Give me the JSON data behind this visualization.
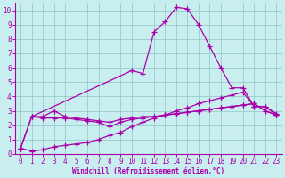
{
  "xlabel": "Windchill (Refroidissement éolien,°C)",
  "background_color": "#c8eef0",
  "line_color": "#aa00aa",
  "grid_color": "#99cccc",
  "xlim": [
    -0.5,
    23.5
  ],
  "ylim": [
    0,
    10.5
  ],
  "xticks": [
    0,
    1,
    2,
    3,
    4,
    5,
    6,
    7,
    8,
    9,
    10,
    11,
    12,
    13,
    14,
    15,
    16,
    17,
    18,
    19,
    20,
    21,
    22,
    23
  ],
  "yticks": [
    0,
    1,
    2,
    3,
    4,
    5,
    6,
    7,
    8,
    9,
    10
  ],
  "line1_x": [
    0,
    1,
    2,
    3,
    4,
    5,
    6,
    7,
    8,
    9,
    10,
    11,
    12,
    13,
    14,
    15,
    16,
    17,
    18,
    19,
    20,
    21,
    22,
    23
  ],
  "line1_y": [
    0.4,
    2.6,
    2.6,
    3.0,
    2.6,
    2.5,
    2.4,
    2.3,
    2.2,
    2.4,
    2.5,
    2.6,
    2.6,
    2.7,
    2.8,
    2.9,
    3.0,
    3.1,
    3.2,
    3.3,
    3.4,
    3.5,
    3.0,
    2.7
  ],
  "line2_x": [
    0,
    1,
    2,
    3,
    4,
    5,
    6,
    7,
    8,
    9,
    10,
    11,
    12,
    13,
    14,
    15,
    16,
    17,
    18,
    19,
    20,
    21,
    22,
    23
  ],
  "line2_y": [
    0.4,
    0.2,
    0.3,
    0.5,
    0.6,
    0.7,
    0.8,
    1.0,
    1.3,
    1.5,
    1.9,
    2.2,
    2.5,
    2.7,
    3.0,
    3.2,
    3.5,
    3.7,
    3.9,
    4.1,
    4.3,
    3.3,
    3.3,
    2.8
  ],
  "line3_x": [
    1,
    10,
    11,
    12,
    13,
    14,
    15,
    16,
    17,
    18,
    19,
    20,
    21,
    22,
    23
  ],
  "line3_y": [
    2.6,
    5.8,
    5.6,
    8.5,
    9.2,
    10.2,
    10.1,
    9.0,
    7.5,
    6.0,
    4.6,
    4.6,
    3.3,
    3.3,
    2.7
  ],
  "line4_x": [
    0,
    1,
    2,
    3,
    4,
    5,
    6,
    7,
    8,
    9,
    10,
    11,
    12,
    13,
    14,
    15,
    16,
    17,
    18,
    19,
    20,
    21,
    22,
    23
  ],
  "line4_y": [
    0.4,
    2.6,
    2.5,
    2.5,
    2.5,
    2.4,
    2.3,
    2.2,
    1.9,
    2.2,
    2.4,
    2.5,
    2.6,
    2.7,
    2.8,
    2.9,
    3.0,
    3.1,
    3.2,
    3.3,
    3.4,
    3.5,
    3.0,
    2.7
  ]
}
